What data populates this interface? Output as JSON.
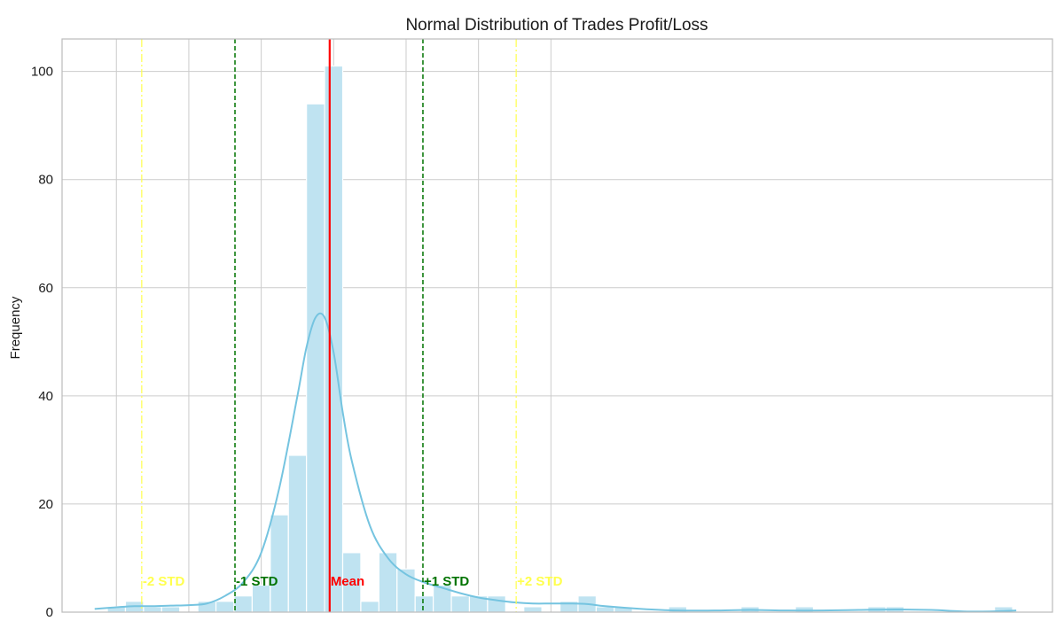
{
  "chart_data": {
    "type": "bar",
    "title": "Normal Distribution of Trades Profit/Loss",
    "xlabel": "",
    "ylabel": "Frequency",
    "ylim": [
      0,
      106
    ],
    "yticks": [
      0,
      20,
      40,
      60,
      80,
      100
    ],
    "x_gridlines": [
      0.5,
      4.5,
      8.5,
      12.5,
      16.5,
      20.5,
      24.5
    ],
    "x_unit": "bin index (axis has no printed tick labels)",
    "grid": true,
    "bins": {
      "start": 0,
      "width": 1,
      "values": [
        1,
        2,
        1,
        1,
        0,
        2,
        2,
        3,
        5,
        18,
        29,
        94,
        101,
        11,
        2,
        11,
        8,
        3,
        5,
        3,
        3,
        3,
        0,
        1,
        0,
        2,
        3,
        1,
        1,
        0,
        0,
        1,
        0,
        0,
        0,
        1,
        0,
        0,
        1,
        0,
        0,
        0,
        1,
        1,
        0,
        0,
        0,
        0,
        0,
        1
      ]
    },
    "kde": {
      "x": [
        -0.7,
        0.5,
        1.5,
        2.5,
        3.5,
        4.5,
        5.5,
        6.5,
        7.5,
        8.5,
        9.5,
        10.5,
        11.0,
        11.5,
        12.0,
        12.5,
        13.0,
        13.5,
        14.5,
        15.5,
        16.5,
        17.5,
        18.5,
        19.5,
        20.5,
        21.5,
        22.5,
        23.5,
        24.5,
        25.5,
        26.5,
        27.5,
        29.5,
        31.5,
        33.5,
        35.5,
        37.5,
        39.5,
        41.5,
        43.5,
        45.5,
        47.5,
        49.5,
        50.2
      ],
      "y": [
        0.6,
        0.9,
        1.1,
        1.1,
        1.2,
        1.3,
        1.6,
        3.0,
        5.5,
        11.0,
        23.0,
        40.0,
        49.0,
        54.5,
        54.5,
        48.0,
        37.0,
        28.0,
        16.0,
        10.0,
        7.0,
        5.5,
        4.5,
        3.5,
        2.7,
        2.2,
        1.8,
        1.6,
        1.6,
        1.6,
        1.5,
        1.1,
        0.6,
        0.3,
        0.3,
        0.4,
        0.3,
        0.3,
        0.4,
        0.5,
        0.4,
        0.1,
        0.2,
        0.3
      ]
    },
    "reference_lines": [
      {
        "label": "-2 STD",
        "x": 1.9,
        "color": "#ffff4d",
        "style": "dashdot"
      },
      {
        "label": "-1 STD",
        "x": 7.05,
        "color": "#007300",
        "style": "dashed"
      },
      {
        "label": "Mean",
        "x": 12.28,
        "color": "#ff0000",
        "style": "solid"
      },
      {
        "label": "+1 STD",
        "x": 17.43,
        "color": "#007300",
        "style": "dashed"
      },
      {
        "label": "+2 STD",
        "x": 22.58,
        "color": "#ffff4d",
        "style": "dashdot"
      }
    ],
    "colors": {
      "bar_fill": "#bfe3f1",
      "bar_edge": "#ffffff",
      "kde_line": "#75c4e0",
      "grid": "#cccccc",
      "axis": "#bbbbbb"
    }
  }
}
